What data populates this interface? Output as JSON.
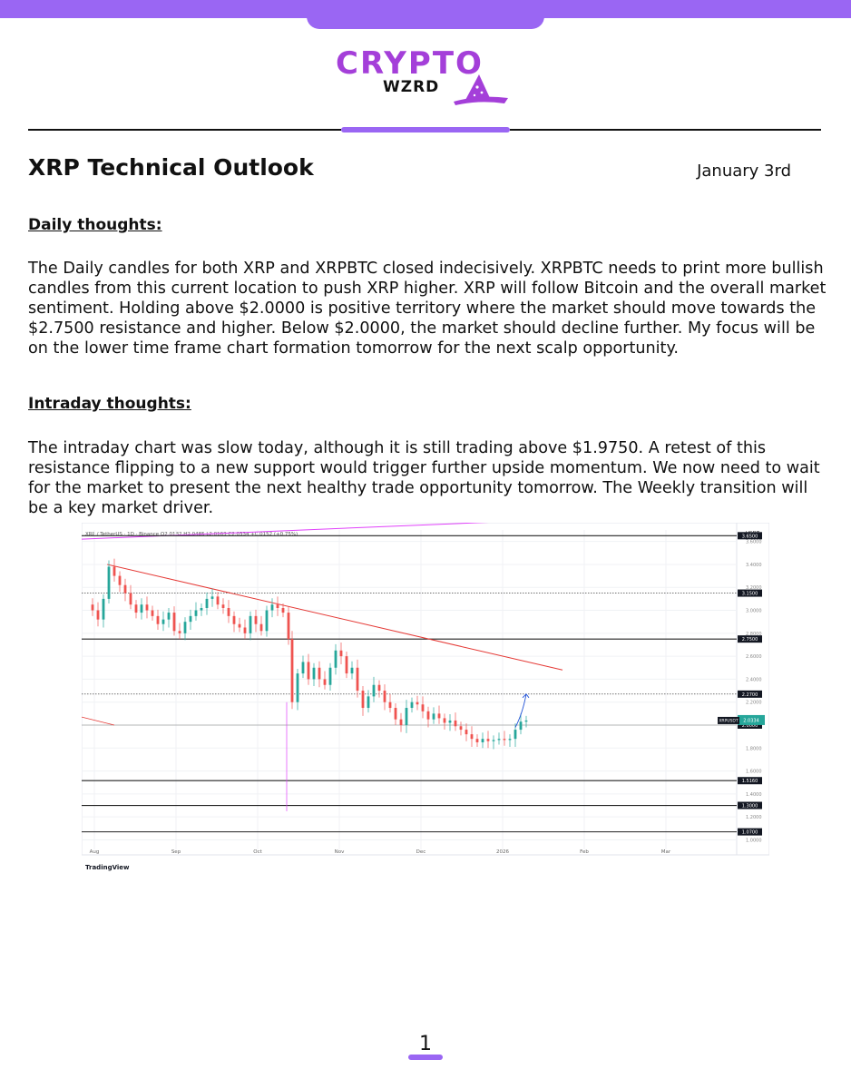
{
  "brand": {
    "logo_top": "CRYPTO",
    "logo_sub": "WZRD",
    "accent_color": "#9a66f3",
    "logo_color": "#a43fd9"
  },
  "header": {
    "title": "XRP Technical Outlook",
    "date": "January 3rd"
  },
  "sections": [
    {
      "heading": "Daily thoughts:",
      "body": "The Daily candles for both XRP and XRPBTC closed indecisively. XRPBTC needs to print more bullish candles from this current location to push XRP higher. XRP will follow Bitcoin and the overall market sentiment. Holding above $2.0000 is positive territory where the market should move towards the $2.7500 resistance and higher. Below $2.0000, the market should decline further. My focus will be on the lower time frame chart formation tomorrow for the next scalp opportunity."
    },
    {
      "heading": "Intraday thoughts:",
      "body": "The intraday chart was slow today, although it is still trading above $1.9750. A retest of this resistance flipping to a new support would trigger further upside momentum. We now need to wait for the market to present the next healthy trade opportunity tomorrow. The Weekly transition will be a key market driver."
    }
  ],
  "chart_data": {
    "type": "candlestick",
    "symbol_header": "XRP / TetherUS · 1D · Binance  O2.0182 H2.0485 L2.0163 C2.0334 +0.0152 (+0.75%)",
    "currency": "USDT",
    "x_labels": [
      "Aug",
      "Sep",
      "Oct",
      "Nov",
      "Dec",
      "2026",
      "Feb",
      "Mar"
    ],
    "y_ticks": [
      3.6,
      3.4,
      3.2,
      3.0,
      2.8,
      2.6,
      2.4,
      2.2,
      2.0,
      1.8,
      1.6,
      1.4,
      1.2,
      1.0
    ],
    "ylim": [
      0.98,
      3.7
    ],
    "levels": [
      {
        "price": 3.65,
        "label": "3.6500",
        "style": "solid"
      },
      {
        "price": 3.15,
        "label": "3.1500",
        "style": "dotted"
      },
      {
        "price": 2.75,
        "label": "2.7500",
        "style": "solid"
      },
      {
        "price": 2.27,
        "label": "2.2700",
        "style": "dotted"
      },
      {
        "price": 2.0,
        "label": "2.0000",
        "style": "thin"
      },
      {
        "price": 1.516,
        "label": "1.5160",
        "style": "solid"
      },
      {
        "price": 1.3,
        "label": "1.3000",
        "style": "solid"
      },
      {
        "price": 1.07,
        "label": "1.0700",
        "style": "solid"
      }
    ],
    "current_price_label": "XRPUSDT",
    "current_price": "2.0334",
    "downtrend_line": {
      "start_price": 3.4,
      "end_price": 2.48,
      "color": "#e53935"
    },
    "upper_line_color": "#e040fb",
    "up_color": "#26a69a",
    "down_color": "#ef5350",
    "watermark": "TradingView"
  },
  "footer": {
    "page_number": "1"
  }
}
